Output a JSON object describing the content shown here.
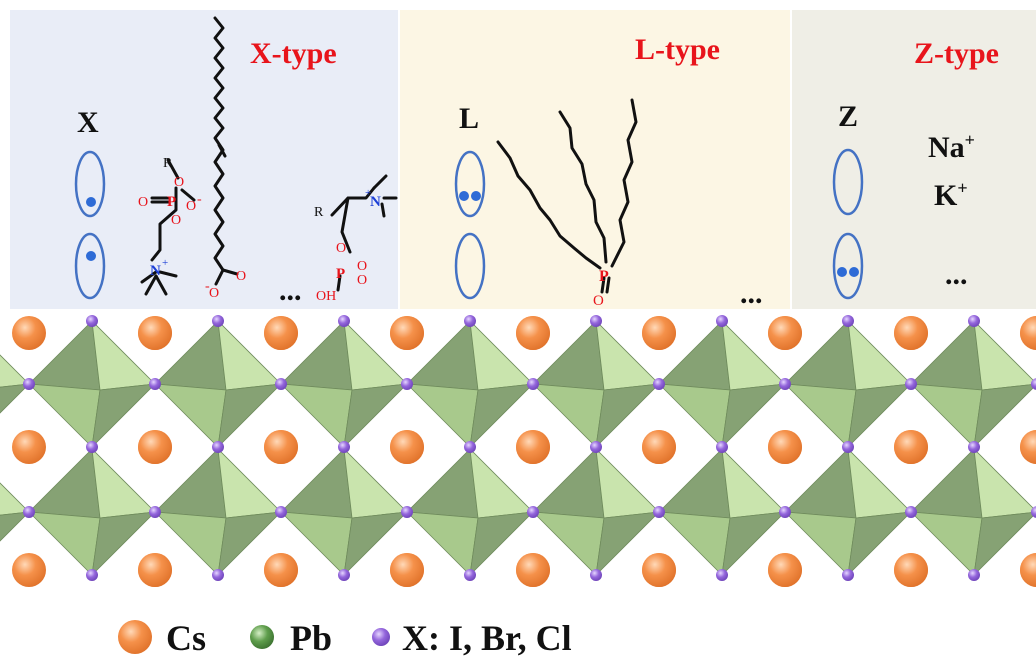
{
  "colors": {
    "title_red": "#e8141b",
    "panel_x_bg": "#e9edf7",
    "panel_l_bg": "#fcf6e4",
    "panel_z_bg": "#efeee6",
    "site_ellipse": "#4472c4",
    "dot_blue": "#2e6bd6",
    "cs_orange": "#f08a3c",
    "pb_green": "#4f8f3f",
    "x_purple": "#8a5fd0",
    "octa_dark": "#7f9a6a",
    "octa_light": "#c5e0a8",
    "atom_red": "#e8141b",
    "atom_blue": "#1c3fd6"
  },
  "panels": {
    "x_type": {
      "title": "X-type",
      "site_label": "X",
      "ellipsis": "...",
      "site_dots": [
        1,
        1
      ]
    },
    "l_type": {
      "title": "L-type",
      "site_label": "L",
      "ellipsis": "...",
      "site_dots": [
        2,
        0
      ]
    },
    "z_type": {
      "title": "Z-type",
      "site_label": "Z",
      "ions": [
        "Na",
        "K"
      ],
      "ion_charge": "+",
      "ellipsis": "...",
      "site_dots": [
        0,
        2
      ]
    }
  },
  "molecule_atoms": {
    "O": "O",
    "P": "P",
    "N": "N",
    "R": "R",
    "OH": "OH",
    "minus": "-",
    "plus": "+",
    "dbl": "="
  },
  "legend": [
    {
      "symbol": "cs-atom",
      "label": "Cs"
    },
    {
      "symbol": "pb-atom",
      "label": "Pb"
    },
    {
      "symbol": "x-atom",
      "label": "X: I, Br, Cl"
    }
  ]
}
